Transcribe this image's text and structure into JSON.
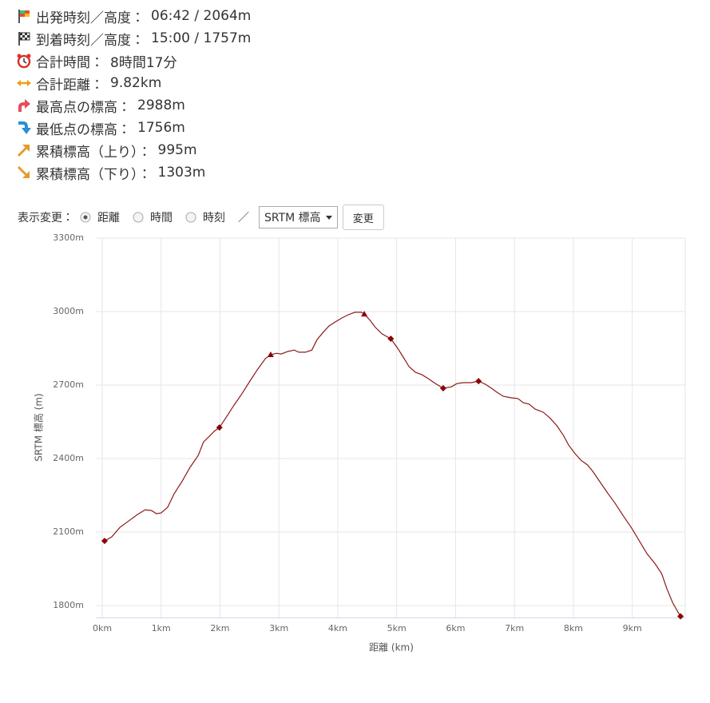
{
  "summary": [
    {
      "label": "出発時刻／高度：",
      "value": "06:42 / 2064m"
    },
    {
      "label": "到着時刻／高度：",
      "value": "15:00 / 1757m"
    },
    {
      "label": "合計時間：",
      "value": "8時間17分"
    },
    {
      "label": "合計距離：",
      "value": "9.82km"
    },
    {
      "label": "最高点の標高：",
      "value": "2988m"
    },
    {
      "label": "最低点の標高：",
      "value": "1756m"
    },
    {
      "label": "累積標高（上り）：",
      "value": "995m"
    },
    {
      "label": "累積標高（下り）：",
      "value": "1303m"
    }
  ],
  "controls": {
    "label": "表示変更：",
    "options": [
      "距離",
      "時間",
      "時刻"
    ],
    "selected": 0,
    "separator": "／",
    "select": "SRTM 標高",
    "button": "変更"
  },
  "chart_data": {
    "type": "line",
    "x_label": "距離 (km)",
    "y_label": "SRTM 標高 (m)",
    "xlim": [
      0,
      9.9
    ],
    "ylim": [
      1750,
      3300
    ],
    "xticks": [
      {
        "value": 0,
        "label": "0km"
      },
      {
        "value": 1,
        "label": "1km"
      },
      {
        "value": 2,
        "label": "2km"
      },
      {
        "value": 3,
        "label": "3km"
      },
      {
        "value": 4,
        "label": "4km"
      },
      {
        "value": 5,
        "label": "5km"
      },
      {
        "value": 6,
        "label": "6km"
      },
      {
        "value": 7,
        "label": "7km"
      },
      {
        "value": 8,
        "label": "8km"
      },
      {
        "value": 9,
        "label": "9km"
      }
    ],
    "yticks": [
      {
        "value": 1800,
        "label": "1800m"
      },
      {
        "value": 2100,
        "label": "2100m"
      },
      {
        "value": 2400,
        "label": "2400m"
      },
      {
        "value": 2700,
        "label": "2700m"
      },
      {
        "value": 3000,
        "label": "3000m"
      },
      {
        "value": 3300,
        "label": "3300m"
      }
    ],
    "grid": true,
    "x": [
      0.04,
      0.16,
      0.3,
      0.43,
      0.6,
      0.73,
      0.84,
      0.92,
      1.0,
      1.11,
      1.22,
      1.36,
      1.49,
      1.63,
      1.72,
      1.82,
      1.9,
      1.99,
      2.1,
      2.23,
      2.37,
      2.5,
      2.64,
      2.77,
      2.86,
      2.96,
      3.04,
      3.15,
      3.26,
      3.34,
      3.45,
      3.56,
      3.65,
      3.76,
      3.85,
      3.96,
      4.07,
      4.18,
      4.29,
      4.4,
      4.45,
      4.55,
      4.64,
      4.75,
      4.9,
      5.01,
      5.12,
      5.21,
      5.32,
      5.43,
      5.54,
      5.66,
      5.79,
      5.93,
      6.02,
      6.13,
      6.27,
      6.39,
      6.51,
      6.61,
      6.7,
      6.81,
      6.95,
      7.06,
      7.15,
      7.25,
      7.35,
      7.49,
      7.6,
      7.72,
      7.83,
      7.92,
      8.03,
      8.13,
      8.24,
      8.33,
      8.44,
      8.58,
      8.71,
      8.85,
      8.98,
      9.12,
      9.25,
      9.39,
      9.5,
      9.59,
      9.69,
      9.82
    ],
    "series": [
      {
        "color": "#8b1a1a",
        "values": [
          2064,
          2080,
          2119,
          2142,
          2172,
          2191,
          2188,
          2175,
          2178,
          2201,
          2256,
          2309,
          2364,
          2413,
          2468,
          2491,
          2511,
          2527,
          2566,
          2615,
          2664,
          2713,
          2765,
          2808,
          2824,
          2830,
          2827,
          2837,
          2843,
          2834,
          2834,
          2843,
          2886,
          2918,
          2941,
          2958,
          2974,
          2987,
          2997,
          2997,
          2990,
          2964,
          2935,
          2909,
          2889,
          2853,
          2811,
          2775,
          2752,
          2742,
          2726,
          2706,
          2687,
          2693,
          2706,
          2710,
          2710,
          2716,
          2703,
          2687,
          2671,
          2654,
          2648,
          2645,
          2628,
          2622,
          2602,
          2589,
          2566,
          2534,
          2495,
          2455,
          2420,
          2393,
          2374,
          2348,
          2309,
          2260,
          2217,
          2165,
          2120,
          2064,
          2012,
          1970,
          1930,
          1868,
          1810,
          1756
        ]
      }
    ],
    "markers": {
      "color": "#8b0000",
      "x": [
        0.04,
        1.99,
        2.86,
        4.45,
        4.9,
        5.79,
        6.39,
        9.82
      ],
      "values": [
        2064,
        2527,
        2824,
        2990,
        2889,
        2687,
        2716,
        1756
      ],
      "symbols": [
        "diamond",
        "diamond",
        "triangle",
        "triangle",
        "diamond",
        "diamond",
        "diamond",
        "diamond"
      ]
    }
  }
}
